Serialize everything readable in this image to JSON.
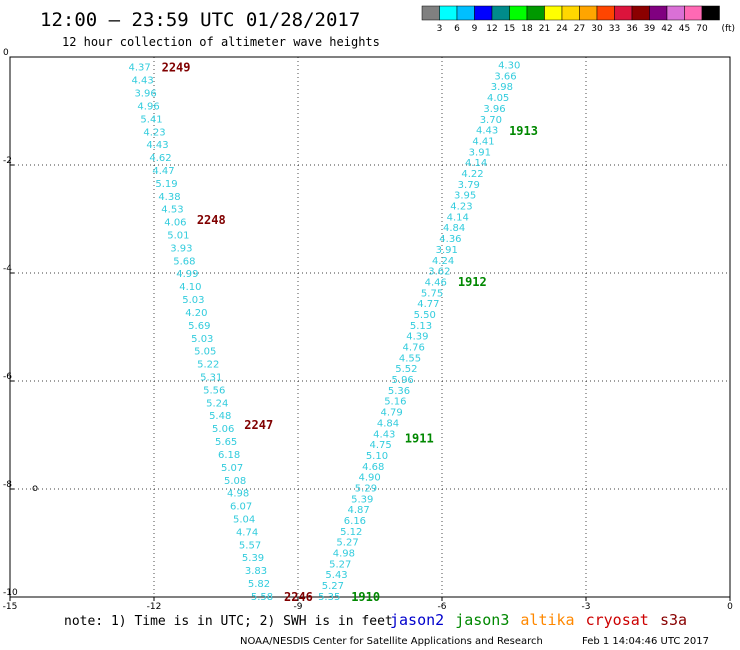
{
  "header": {
    "title": "12:00 – 23:59 UTC 01/28/2017",
    "subtitle": "12 hour collection of altimeter wave heights"
  },
  "legend": {
    "colors": [
      "#808080",
      "#00ffff",
      "#00bfff",
      "#0000ff",
      "#008b8b",
      "#00ff00",
      "#009900",
      "#ffff00",
      "#ffd700",
      "#ffa500",
      "#ff4500",
      "#dc143c",
      "#8b0000",
      "#800080",
      "#da70d6",
      "#ff69b4",
      "#000000"
    ],
    "labels": [
      "3",
      "6",
      "9",
      "12",
      "15",
      "18",
      "21",
      "24",
      "27",
      "30",
      "33",
      "36",
      "39",
      "42",
      "45",
      "70"
    ],
    "unit": "(ft)"
  },
  "chart_data": {
    "type": "scatter",
    "xlim": [
      -15,
      0
    ],
    "ylim": [
      -10,
      0
    ],
    "x_ticks": [
      "-15",
      "-12",
      "-9",
      "-6",
      "-3",
      "0"
    ],
    "y_ticks": [
      "0",
      "-2",
      "-4",
      "-6",
      "-8",
      "-10"
    ],
    "grid": true,
    "marker": {
      "label": "o",
      "x": -15,
      "y": -8.0
    },
    "series": [
      {
        "name": "jason3",
        "color": "#33ccdd",
        "x_start": -12.3,
        "y_start": -0.18,
        "x_end": -9.75,
        "y_end": -9.98,
        "values": [
          "4.37",
          "4.43",
          "3.96",
          "4.96",
          "5.41",
          "4.23",
          "4.43",
          "4.62",
          "4.47",
          "5.19",
          "4.38",
          "4.53",
          "4.06",
          "5.01",
          "3.93",
          "5.68",
          "4.99",
          "4.10",
          "5.03",
          "4.20",
          "5.69",
          "5.03",
          "5.05",
          "5.22",
          "5.31",
          "5.56",
          "5.24",
          "5.48",
          "5.06",
          "5.65",
          "6.18",
          "5.07",
          "5.08",
          "4.98",
          "6.07",
          "5.04",
          "4.74",
          "5.57",
          "5.39",
          "3.83",
          "5.82",
          "5.58"
        ],
        "time_labels": [
          {
            "text": "2249",
            "y": -0.18,
            "color": "#800000"
          },
          {
            "text": "2248",
            "y": -3.0,
            "color": "#800000"
          },
          {
            "text": "2247",
            "y": -6.8,
            "color": "#800000"
          },
          {
            "text": "2246",
            "y": -9.98,
            "color": "#800000"
          }
        ]
      },
      {
        "name": "jason2",
        "color": "#33ccdd",
        "x_start": -4.6,
        "y_start": -0.14,
        "x_end": -8.35,
        "y_end": -9.98,
        "values": [
          "4.30",
          "3.66",
          "3.98",
          "4.05",
          "3.96",
          "3.70",
          "4.43",
          "4.41",
          "3.91",
          "4.14",
          "4.22",
          "3.79",
          "3.95",
          "4.23",
          "4.14",
          "4.84",
          "4.36",
          "3.91",
          "4.24",
          "3.62",
          "4.46",
          "5.75",
          "4.77",
          "5.50",
          "5.13",
          "4.39",
          "4.76",
          "4.55",
          "5.52",
          "5.96",
          "5.36",
          "5.16",
          "4.79",
          "4.84",
          "4.43",
          "4.75",
          "5.10",
          "4.68",
          "4.90",
          "5.29",
          "5.39",
          "4.87",
          "6.16",
          "5.12",
          "5.27",
          "4.98",
          "5.27",
          "5.43",
          "5.27",
          "5.35"
        ],
        "time_labels": [
          {
            "text": "1913",
            "y": -1.35,
            "color": "#008800"
          },
          {
            "text": "1912",
            "y": -4.15,
            "color": "#008800"
          },
          {
            "text": "1911",
            "y": -7.05,
            "color": "#008800"
          },
          {
            "text": "1910",
            "y": -9.98,
            "color": "#008800"
          }
        ]
      }
    ]
  },
  "footer": {
    "note": "note: 1) Time is in UTC; 2) SWH is in feet",
    "satellites": [
      {
        "name": "jason2",
        "color": "#0000cc"
      },
      {
        "name": "jason3",
        "color": "#008800"
      },
      {
        "name": "altika",
        "color": "#ff8800"
      },
      {
        "name": "cryosat",
        "color": "#cc0000"
      },
      {
        "name": "s3a",
        "color": "#880000"
      }
    ],
    "credit": "NOAA/NESDIS Center for Satellite Applications and Research",
    "timestamp": "Feb  1 14:04:46 UTC 2017"
  }
}
